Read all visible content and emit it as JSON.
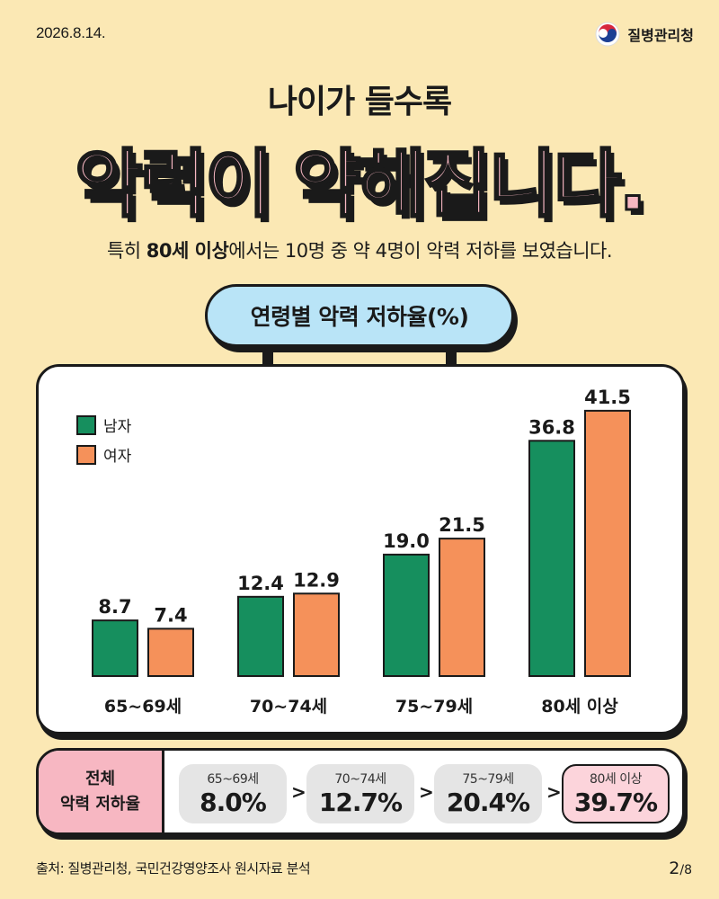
{
  "header": {
    "date": "2026.8.14.",
    "org_name": "질병관리청"
  },
  "title": {
    "subtitle": "나이가 들수록",
    "headline": "악력이 약해집니다."
  },
  "summary": {
    "prefix": "특히 ",
    "bold": "80세 이상",
    "suffix": "에서는 10명 중 약 4명이 악력 저하를 보였습니다."
  },
  "chart_title": "연령별 악력 저하율(%)",
  "colors": {
    "male": "#168f5e",
    "female": "#f5915a",
    "background": "#fbe8b4",
    "accent_pink": "#f7b7c2",
    "accent_blue": "#b9e4f7"
  },
  "chart_data": {
    "type": "bar",
    "title": "연령별 악력 저하율(%)",
    "categories": [
      "65~69세",
      "70~74세",
      "75~79세",
      "80세 이상"
    ],
    "series": [
      {
        "name": "남자",
        "values": [
          8.7,
          12.4,
          19.0,
          36.8
        ]
      },
      {
        "name": "여자",
        "values": [
          7.4,
          12.9,
          21.5,
          41.5
        ]
      }
    ],
    "ylim": [
      0,
      45
    ],
    "grid": false,
    "legend": "top-left"
  },
  "overall": {
    "label_line1": "전체",
    "label_line2": "악력 저하율",
    "items": [
      {
        "age": "65~69세",
        "value": "8.0%"
      },
      {
        "age": "70~74세",
        "value": "12.7%"
      },
      {
        "age": "75~79세",
        "value": "20.4%"
      },
      {
        "age": "80세 이상",
        "value": "39.7%"
      }
    ],
    "arrow": ">"
  },
  "footer": {
    "source": "출처: 질병관리청, 국민건강영양조사 원시자료 분석",
    "page_current": "2",
    "page_total": "/8"
  }
}
